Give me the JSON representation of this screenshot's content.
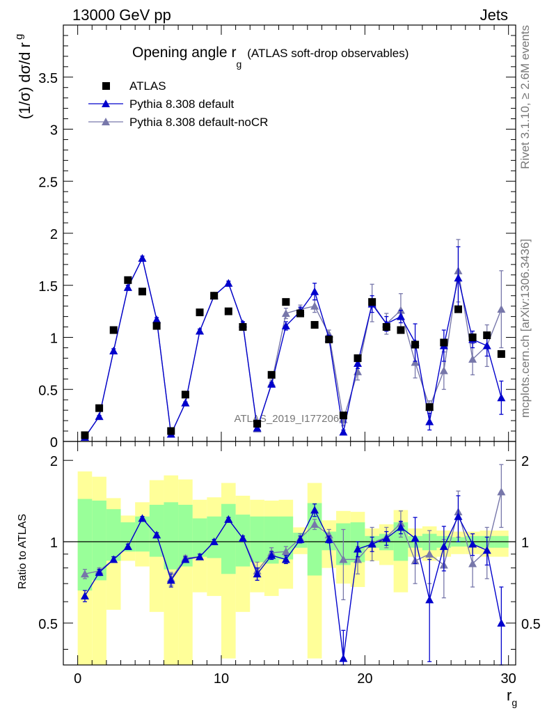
{
  "header": {
    "left": "13000 GeV pp",
    "right": "Jets"
  },
  "side_labels": {
    "rivet": "Rivet 3.1.10, ≥ 2.6M events",
    "mcplots": "mcplots.cern.ch [arXiv:1306.3436]"
  },
  "watermark": "ATLAS_2019_I1772062",
  "chart_data": [
    {
      "type": "scatter",
      "title_main": "Opening angle r",
      "title_sub": "g",
      "title_paren": "(ATLAS soft-drop observables)",
      "ylabel_main": "(1/σ) dσ/d r",
      "ylabel_sub": "g",
      "xlim": [
        -1,
        30.5
      ],
      "ylim": [
        0,
        4.0
      ],
      "yticks": [
        "0",
        "0.5",
        "1",
        "1.5",
        "2",
        "2.5",
        "3",
        "3.5"
      ],
      "yticks_values": [
        0,
        0.5,
        1,
        1.5,
        2,
        2.5,
        3,
        3.5
      ],
      "legend_position": "top-left",
      "x": [
        0.5,
        1.5,
        2.5,
        3.5,
        4.5,
        5.5,
        6.5,
        7.5,
        8.5,
        9.5,
        10.5,
        11.5,
        12.5,
        13.5,
        14.5,
        15.5,
        16.5,
        17.5,
        18.5,
        19.5,
        20.5,
        21.5,
        22.5,
        23.5,
        24.5,
        25.5,
        26.5,
        27.5,
        28.5,
        29.5
      ],
      "series": [
        {
          "name": "ATLAS",
          "color": "#000000",
          "marker": "square",
          "values": [
            0.06,
            0.32,
            1.07,
            1.55,
            1.44,
            1.11,
            0.1,
            0.45,
            1.24,
            1.4,
            1.25,
            1.1,
            0.17,
            0.64,
            1.34,
            1.23,
            1.12,
            0.98,
            0.25,
            0.8,
            1.34,
            1.1,
            1.07,
            0.93,
            0.33,
            0.95,
            1.27,
            1.0,
            1.02,
            0.84
          ]
        },
        {
          "name": "Pythia 8.308 default",
          "color": "#0000cc",
          "marker": "triangle",
          "values": [
            0.04,
            0.24,
            0.87,
            1.48,
            1.76,
            1.17,
            0.07,
            0.37,
            1.06,
            1.4,
            1.52,
            1.13,
            0.13,
            0.55,
            1.11,
            1.25,
            1.44,
            0.99,
            0.09,
            0.75,
            1.32,
            1.13,
            1.2,
            0.95,
            0.19,
            0.92,
            1.57,
            0.98,
            0.92,
            0.42
          ],
          "errors": [
            0.01,
            0.01,
            0.02,
            0.02,
            0.02,
            0.02,
            0.01,
            0.01,
            0.02,
            0.02,
            0.02,
            0.02,
            0.01,
            0.02,
            0.04,
            0.04,
            0.08,
            0.03,
            0.02,
            0.05,
            0.08,
            0.07,
            0.06,
            0.18,
            0.08,
            0.15,
            0.3,
            0.08,
            0.1,
            0.16
          ]
        },
        {
          "name": "Pythia 8.308 default-noCR",
          "color": "#7777aa",
          "marker": "triangle",
          "values": [
            0.04,
            0.24,
            0.87,
            1.48,
            1.76,
            1.17,
            0.07,
            0.37,
            1.06,
            1.4,
            1.52,
            1.13,
            0.12,
            0.56,
            1.23,
            1.27,
            1.3,
            1.03,
            0.21,
            0.67,
            1.33,
            1.13,
            1.26,
            0.76,
            0.33,
            0.68,
            1.64,
            0.79,
            0.92,
            1.27
          ],
          "errors": [
            0.01,
            0.01,
            0.02,
            0.02,
            0.02,
            0.02,
            0.01,
            0.01,
            0.02,
            0.02,
            0.02,
            0.02,
            0.01,
            0.03,
            0.05,
            0.04,
            0.06,
            0.04,
            0.06,
            0.08,
            0.18,
            0.1,
            0.16,
            0.15,
            0.06,
            0.18,
            0.3,
            0.15,
            0.2,
            0.37
          ]
        }
      ]
    },
    {
      "type": "scatter",
      "ylabel": "Ratio to ATLAS",
      "xlabel_main": "r",
      "xlabel_sub": "g",
      "xlim": [
        -1,
        30.5
      ],
      "ylim": [
        0.35,
        2.35
      ],
      "log_scale_y": true,
      "xticks": [
        "0",
        "10",
        "20",
        "30"
      ],
      "xticks_values": [
        0,
        10,
        20,
        30
      ],
      "yticks": [
        "0.5",
        "1",
        "2"
      ],
      "yticks_values": [
        0.5,
        1,
        2
      ],
      "reference_line": 1,
      "uncertainty_bands": {
        "inner_color": "#99ff99",
        "outer_color": "#ffff99",
        "inner_lo": [
          0.66,
          0.72,
          0.85,
          0.92,
          0.92,
          0.88,
          0.79,
          0.81,
          0.88,
          0.87,
          0.76,
          0.81,
          0.84,
          0.83,
          0.86,
          0.95,
          0.75,
          0.93,
          0.82,
          0.84,
          0.95,
          0.93,
          0.85,
          0.95,
          0.93,
          0.95,
          0.96,
          0.96,
          0.95,
          0.95
        ],
        "inner_hi": [
          1.44,
          1.42,
          1.32,
          1.18,
          1.24,
          1.37,
          1.4,
          1.37,
          1.22,
          1.24,
          1.38,
          1.26,
          1.24,
          1.24,
          1.24,
          1.08,
          1.39,
          1.09,
          1.17,
          1.18,
          1.05,
          1.07,
          1.18,
          1.05,
          1.07,
          1.05,
          1.04,
          1.05,
          1.05,
          1.05
        ],
        "outer_lo": [
          0.35,
          0.35,
          0.56,
          0.85,
          0.81,
          0.55,
          0.35,
          0.35,
          0.65,
          0.63,
          0.37,
          0.55,
          0.65,
          0.63,
          0.67,
          0.9,
          0.37,
          0.8,
          0.7,
          0.68,
          0.85,
          0.82,
          0.65,
          0.88,
          0.85,
          0.88,
          0.9,
          0.9,
          0.88,
          0.88
        ],
        "outer_hi": [
          1.82,
          1.74,
          1.45,
          1.25,
          1.4,
          1.69,
          1.76,
          1.7,
          1.43,
          1.46,
          1.65,
          1.48,
          1.43,
          1.42,
          1.43,
          1.13,
          1.65,
          1.2,
          1.3,
          1.29,
          1.12,
          1.16,
          1.31,
          1.12,
          1.14,
          1.1,
          1.09,
          1.09,
          1.1,
          1.1
        ]
      },
      "x": [
        0.5,
        1.5,
        2.5,
        3.5,
        4.5,
        5.5,
        6.5,
        7.5,
        8.5,
        9.5,
        10.5,
        11.5,
        12.5,
        13.5,
        14.5,
        15.5,
        16.5,
        17.5,
        18.5,
        19.5,
        20.5,
        21.5,
        22.5,
        23.5,
        24.5,
        25.5,
        26.5,
        27.5,
        28.5,
        29.5
      ],
      "series": [
        {
          "name": "Pythia 8.308 default",
          "color": "#0000cc",
          "marker": "triangle",
          "values": [
            0.63,
            0.77,
            0.86,
            0.96,
            1.22,
            1.06,
            0.72,
            0.86,
            0.88,
            1.0,
            1.21,
            1.03,
            0.76,
            0.89,
            0.86,
            1.02,
            1.31,
            1.02,
            0.37,
            0.94,
            0.98,
            1.03,
            1.13,
            1.03,
            0.61,
            0.96,
            1.24,
            0.98,
            0.93,
            0.5
          ],
          "errors": [
            0.03,
            0.02,
            0.02,
            0.02,
            0.02,
            0.02,
            0.04,
            0.02,
            0.02,
            0.02,
            0.02,
            0.02,
            0.04,
            0.03,
            0.03,
            0.03,
            0.07,
            0.03,
            0.1,
            0.06,
            0.06,
            0.06,
            0.06,
            0.2,
            0.25,
            0.18,
            0.24,
            0.09,
            0.11,
            0.18
          ]
        },
        {
          "name": "Pythia 8.308 default-noCR",
          "color": "#7777aa",
          "marker": "triangle",
          "values": [
            0.76,
            0.78,
            0.86,
            0.96,
            1.22,
            1.06,
            0.73,
            0.87,
            0.88,
            1.0,
            1.21,
            1.03,
            0.78,
            0.91,
            0.92,
            1.03,
            1.16,
            1.06,
            0.86,
            0.86,
            0.99,
            1.04,
            1.17,
            0.85,
            0.9,
            0.82,
            1.29,
            0.83,
            0.93,
            1.53
          ],
          "errors": [
            0.03,
            0.02,
            0.02,
            0.02,
            0.02,
            0.02,
            0.04,
            0.02,
            0.02,
            0.02,
            0.02,
            0.02,
            0.06,
            0.04,
            0.04,
            0.04,
            0.05,
            0.05,
            0.25,
            0.1,
            0.14,
            0.09,
            0.13,
            0.15,
            0.2,
            0.2,
            0.25,
            0.15,
            0.2,
            0.4
          ]
        }
      ]
    }
  ]
}
